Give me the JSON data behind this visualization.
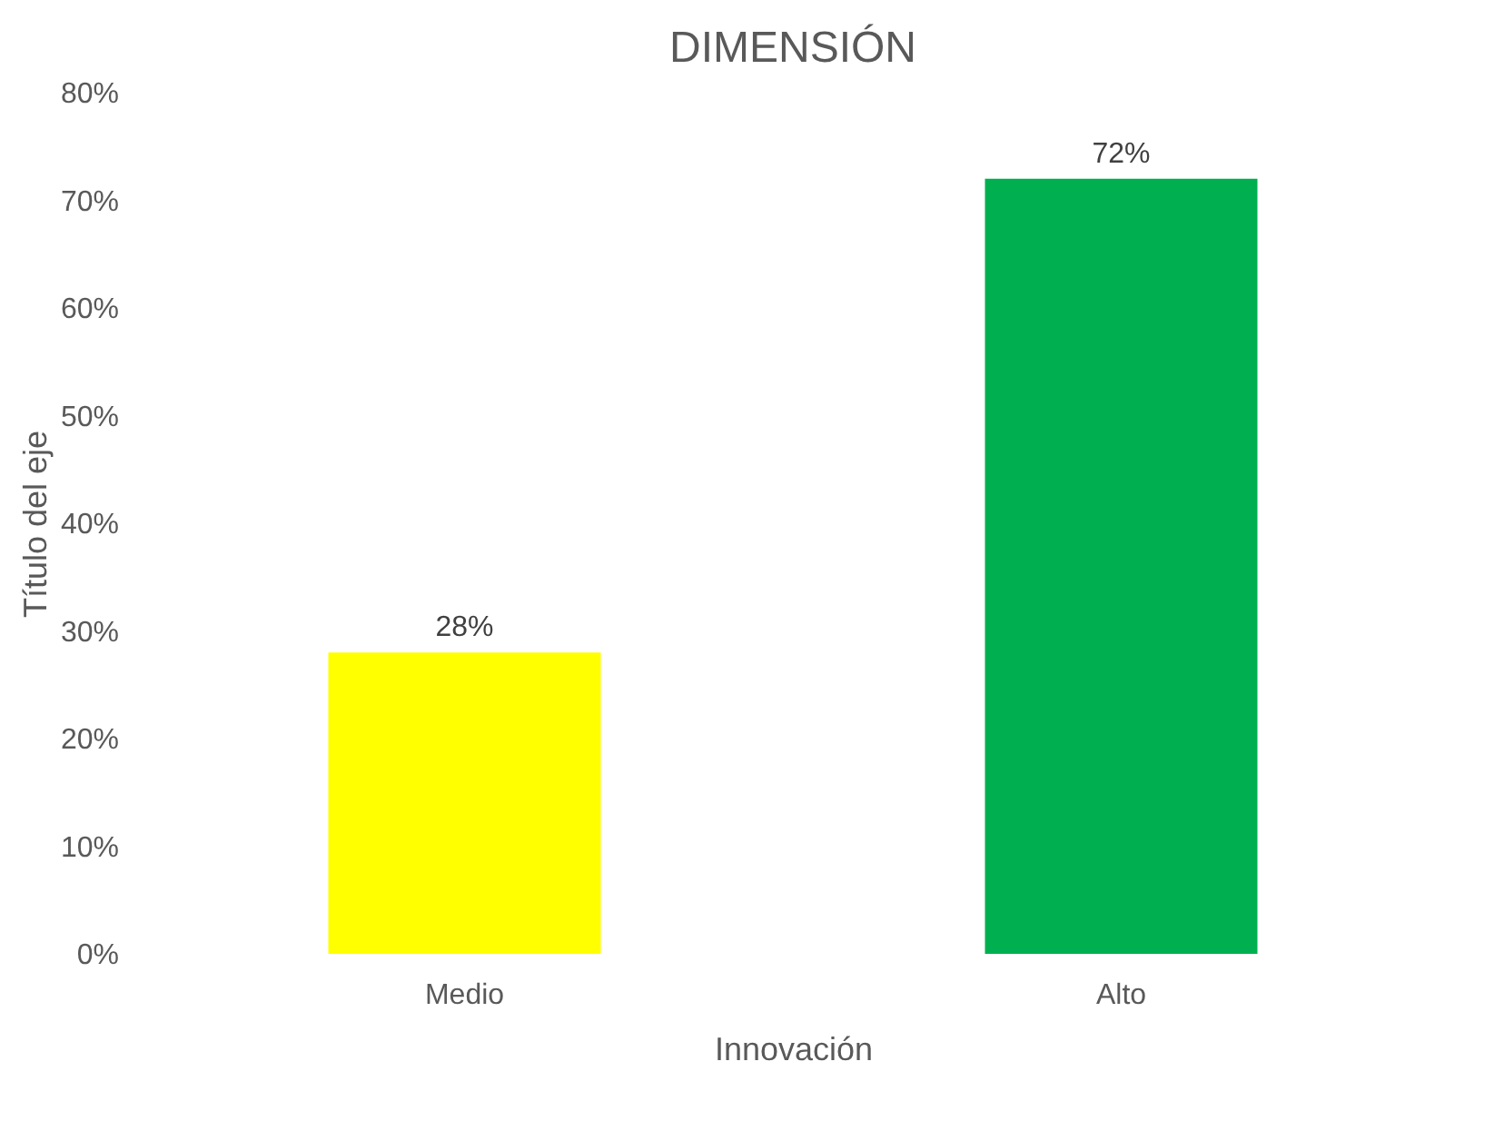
{
  "chart_data": {
    "type": "bar",
    "title": "DIMENSIÓN",
    "xlabel": "Innovación",
    "ylabel": "Título del eje",
    "categories": [
      "Medio",
      "Alto"
    ],
    "values": [
      28,
      72
    ],
    "colors": [
      "#ffff00",
      "#00b050"
    ],
    "value_labels": [
      "28%",
      "72%"
    ],
    "ylim": [
      0,
      80
    ],
    "yticks": [
      {
        "value": 0,
        "label": "0%"
      },
      {
        "value": 10,
        "label": "10%"
      },
      {
        "value": 20,
        "label": "20%"
      },
      {
        "value": 30,
        "label": "30%"
      },
      {
        "value": 40,
        "label": "40%"
      },
      {
        "value": 50,
        "label": "50%"
      },
      {
        "value": 60,
        "label": "60%"
      },
      {
        "value": 70,
        "label": "70%"
      },
      {
        "value": 80,
        "label": "80%"
      }
    ],
    "grid": false
  }
}
